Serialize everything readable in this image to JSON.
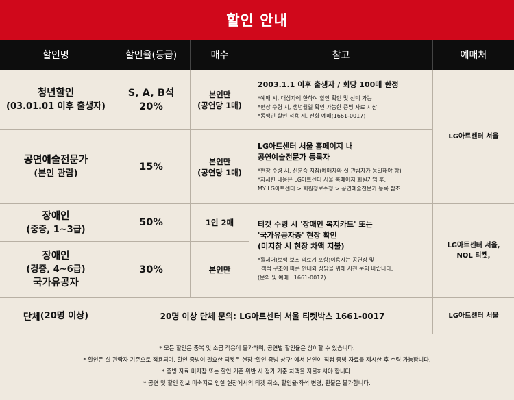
{
  "title": "할인 안내",
  "headers": [
    "할인명",
    "할인율(등급)",
    "매수",
    "참고",
    "예매처"
  ],
  "rows": {
    "youth": {
      "name": "청년할인",
      "sub": "(03.01.01 이후 출생자)",
      "grade": "S, A, B석",
      "rate": "20%",
      "qty_1": "본인만",
      "qty_2": "(공연당 1매)",
      "ref_main": "2003.1.1 이후 출생자 / 회당 100매 한정",
      "ref_notes": [
        "*예매 시, 대상자에 한하여 할인 확인 및 선택 가능",
        "*현장 수령 시, 생년월일 확인 가능한 증빙 자료 지참",
        "*동행인 할인 적용 시, 전화 예매(1661-0017)"
      ]
    },
    "expert": {
      "name": "공연예술전문가",
      "sub": "(본인 관람)",
      "rate": "15%",
      "qty_1": "본인만",
      "qty_2": "(공연당 1매)",
      "ref_main_1": "LG아트센터 서울 홈페이지 내",
      "ref_main_2": "공연예술전문가 등록자",
      "ref_notes": [
        "*현장 수령 시, 신분증 지참(예매자와 실 관람자가 동일해야 함)",
        "*자세한 내용은 LG아트센터 서울 홈페이지 회원가입 후,",
        "MY LG아트센터 > 회원정보수정 > 공연예술전문가 등록 참조"
      ],
      "venue": "LG아트센터 서울"
    },
    "disabled_severe": {
      "name": "장애인",
      "sub": "(중증, 1~3급)",
      "rate": "50%",
      "qty": "1인 2매"
    },
    "disabled_mild": {
      "name": "장애인",
      "sub": "(경증, 4~6급)",
      "name_2": "국가유공자",
      "rate": "30%",
      "qty": "본인만"
    },
    "disabled_ref": {
      "main_1": "티켓 수령 시 '장애인 복지카드' 또는",
      "main_2": "'국가유공자증' 현장 확인",
      "main_3": "(미지참 시 현장 차액 지불)",
      "notes": [
        "*휠체어(보행 보조 의료기 포함)이용자는 공연장 및",
        "  객석 구조에 따른 안내와 상담을 위해 사전 문의 바랍니다.",
        "(문의 및 예매 : 1661-0017)"
      ],
      "venue_1": "LG아트센터 서울,",
      "venue_2": "NOL 티켓,"
    },
    "group": {
      "name": "단체",
      "name_small": "(20명 이상)",
      "text": "20명 이상 단체 문의: LG아트센터 서울 티켓박스 1661-0017",
      "venue": "LG아트센터 서울"
    }
  },
  "footnotes": [
    "* 모든 할인은 중복 및 소급 적용이 불가하며, 공연별 할인율은 상이할 수 있습니다.",
    "* 할인은 실 관람자 기준으로 적용되며, 할인 증빙이 필요한 티켓은 현장 '할인 증빙 창구' 에서 본인이 직접 증빙 자료를 제시한 후 수령 가능합니다.",
    "* 증빙 자료 미지참 또는 할인 기준 위반 시 정가 기준 차액을 지불하셔야 합니다.",
    "* 공연 및 할인 정보 미숙지로 인한 현장에서의 티켓 취소, 할인율·좌석 변경, 환불은 불가합니다."
  ]
}
